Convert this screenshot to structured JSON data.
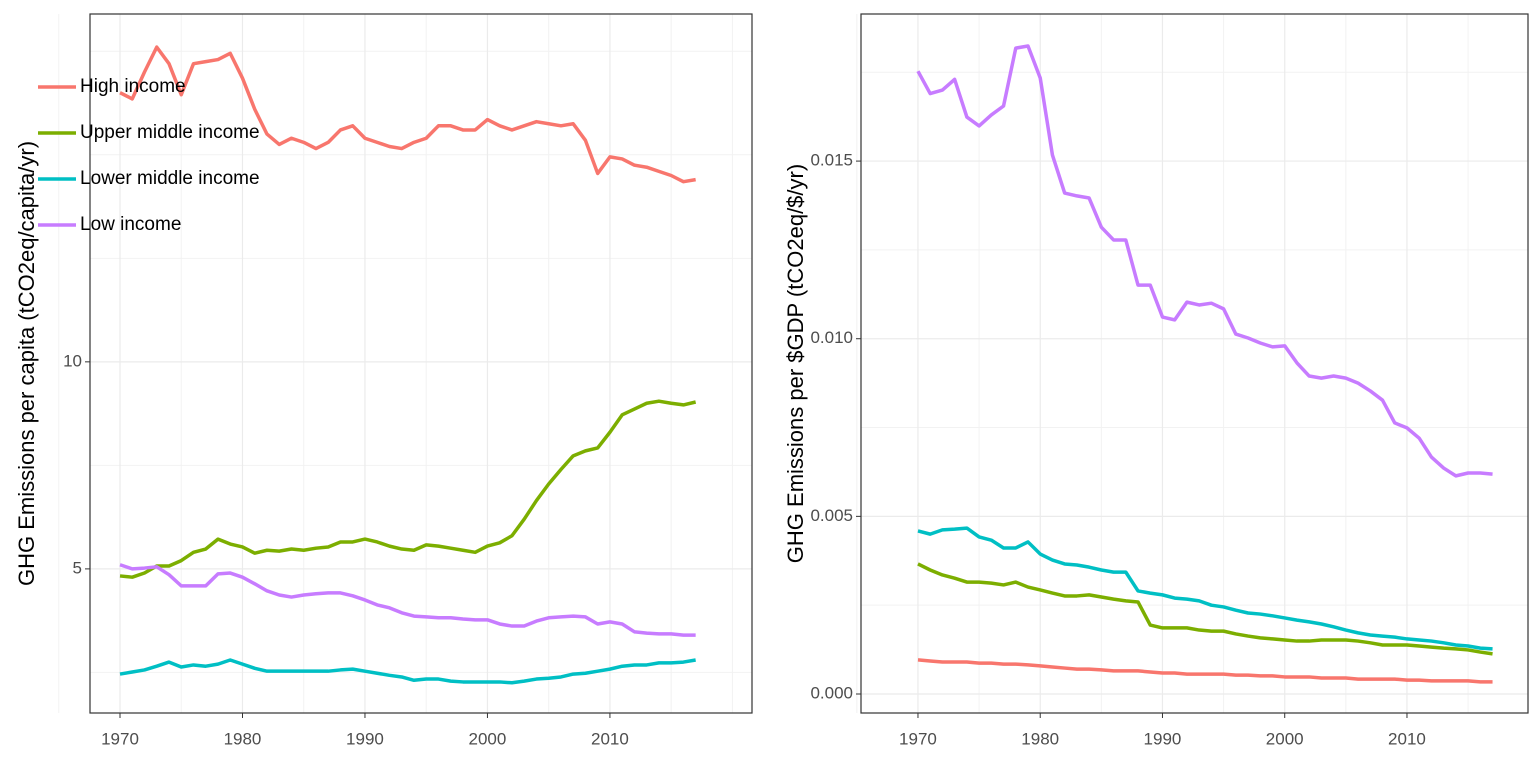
{
  "chart_data": [
    {
      "type": "line",
      "ylabel": "GHG Emissions per capita (tCO2eq/capita/yr)",
      "legend": "top-left",
      "grid": true,
      "xlim": [
        1967.55,
        2021.6
      ],
      "ylim": [
        1.52,
        18.4
      ],
      "xticks": [
        1970,
        1980,
        1990,
        2000,
        2010
      ],
      "yticks": [
        5,
        10
      ],
      "x": [
        1970,
        1971,
        1972,
        1973,
        1974,
        1975,
        1976,
        1977,
        1978,
        1979,
        1980,
        1981,
        1982,
        1983,
        1984,
        1985,
        1986,
        1987,
        1988,
        1989,
        1990,
        1991,
        1992,
        1993,
        1994,
        1995,
        1996,
        1997,
        1998,
        1999,
        2000,
        2001,
        2002,
        2003,
        2004,
        2005,
        2006,
        2007,
        2008,
        2009,
        2010,
        2011,
        2012,
        2013,
        2014,
        2015,
        2016,
        2017
      ],
      "series": [
        {
          "name": "High income",
          "color": "#F8766D",
          "values": [
            16.5,
            16.35,
            17.0,
            17.6,
            17.2,
            16.45,
            17.2,
            17.25,
            17.3,
            17.45,
            16.85,
            16.1,
            15.5,
            15.25,
            15.4,
            15.3,
            15.15,
            15.3,
            15.6,
            15.7,
            15.4,
            15.3,
            15.2,
            15.15,
            15.3,
            15.4,
            15.7,
            15.7,
            15.6,
            15.6,
            15.85,
            15.7,
            15.6,
            15.7,
            15.8,
            15.75,
            15.7,
            15.75,
            15.35,
            14.55,
            14.95,
            14.9,
            14.75,
            14.7,
            14.6,
            14.5,
            14.35,
            14.4
          ]
        },
        {
          "name": "Upper middle income",
          "color": "#7CAE00",
          "values": [
            4.83,
            4.8,
            4.9,
            5.07,
            5.07,
            5.2,
            5.4,
            5.48,
            5.72,
            5.6,
            5.53,
            5.38,
            5.45,
            5.43,
            5.48,
            5.45,
            5.5,
            5.53,
            5.65,
            5.65,
            5.72,
            5.65,
            5.55,
            5.48,
            5.45,
            5.58,
            5.55,
            5.5,
            5.45,
            5.4,
            5.55,
            5.63,
            5.8,
            6.2,
            6.65,
            7.05,
            7.4,
            7.73,
            7.85,
            7.92,
            8.3,
            8.72,
            8.86,
            9.0,
            9.05,
            9.0,
            8.96,
            9.03
          ]
        },
        {
          "name": "Lower middle income",
          "color": "#00BFC4",
          "values": [
            2.46,
            2.51,
            2.56,
            2.65,
            2.75,
            2.63,
            2.68,
            2.65,
            2.7,
            2.8,
            2.7,
            2.6,
            2.53,
            2.53,
            2.53,
            2.53,
            2.53,
            2.53,
            2.56,
            2.58,
            2.53,
            2.48,
            2.43,
            2.39,
            2.31,
            2.34,
            2.34,
            2.29,
            2.27,
            2.27,
            2.27,
            2.27,
            2.25,
            2.29,
            2.34,
            2.36,
            2.39,
            2.46,
            2.48,
            2.53,
            2.58,
            2.65,
            2.68,
            2.68,
            2.73,
            2.73,
            2.75,
            2.8
          ]
        },
        {
          "name": "Low income",
          "color": "#C77CFF",
          "values": [
            5.1,
            5.0,
            5.02,
            5.05,
            4.86,
            4.59,
            4.59,
            4.59,
            4.88,
            4.9,
            4.8,
            4.64,
            4.47,
            4.37,
            4.32,
            4.37,
            4.4,
            4.42,
            4.42,
            4.35,
            4.25,
            4.13,
            4.06,
            3.94,
            3.86,
            3.84,
            3.82,
            3.82,
            3.79,
            3.77,
            3.77,
            3.67,
            3.62,
            3.62,
            3.74,
            3.82,
            3.84,
            3.86,
            3.84,
            3.67,
            3.72,
            3.67,
            3.48,
            3.45,
            3.43,
            3.43,
            3.4,
            3.4
          ]
        }
      ]
    },
    {
      "type": "line",
      "ylabel": "GHG Emissions per $GDP (tCO2eq/$/yr)",
      "grid": true,
      "xlim": [
        1965.34,
        2019.9
      ],
      "ylim": [
        -0.000535,
        0.01914
      ],
      "xticks": [
        1970,
        1980,
        1990,
        2000,
        2010
      ],
      "yticks": [
        {
          "value": 0,
          "label": "0.000"
        },
        0.005,
        {
          "value": 0.01,
          "label": "0.010"
        },
        0.015
      ],
      "x": [
        1970,
        1971,
        1972,
        1973,
        1974,
        1975,
        1976,
        1977,
        1978,
        1979,
        1980,
        1981,
        1982,
        1983,
        1984,
        1985,
        1986,
        1987,
        1988,
        1989,
        1990,
        1991,
        1992,
        1993,
        1994,
        1995,
        1996,
        1997,
        1998,
        1999,
        2000,
        2001,
        2002,
        2003,
        2004,
        2005,
        2006,
        2007,
        2008,
        2009,
        2010,
        2011,
        2012,
        2013,
        2014,
        2015,
        2016,
        2017
      ],
      "series": [
        {
          "color": "#F8766D",
          "values": [
            0.00096,
            0.00093,
            0.0009,
            0.0009,
            0.0009,
            0.00087,
            0.00087,
            0.00084,
            0.00084,
            0.00082,
            0.00079,
            0.00076,
            0.00073,
            0.0007,
            0.0007,
            0.00068,
            0.00065,
            0.00065,
            0.00065,
            0.00062,
            0.00059,
            0.00059,
            0.00056,
            0.00056,
            0.00056,
            0.00056,
            0.00053,
            0.00053,
            0.00051,
            0.00051,
            0.00048,
            0.00048,
            0.00048,
            0.00045,
            0.00045,
            0.00045,
            0.00042,
            0.00042,
            0.00042,
            0.00042,
            0.00039,
            0.00039,
            0.00037,
            0.00037,
            0.00037,
            0.00037,
            0.00034,
            0.00034
          ]
        },
        {
          "color": "#7CAE00",
          "values": [
            0.00366,
            0.00349,
            0.00335,
            0.00326,
            0.00315,
            0.00315,
            0.00312,
            0.00307,
            0.00315,
            0.00301,
            0.00293,
            0.00284,
            0.00276,
            0.00276,
            0.00279,
            0.00273,
            0.00267,
            0.00262,
            0.00259,
            0.00194,
            0.00186,
            0.00186,
            0.00186,
            0.0018,
            0.00177,
            0.00177,
            0.00169,
            0.00163,
            0.00158,
            0.00155,
            0.00152,
            0.00149,
            0.00149,
            0.00152,
            0.00152,
            0.00152,
            0.00149,
            0.00144,
            0.00138,
            0.00138,
            0.00138,
            0.00135,
            0.00132,
            0.00129,
            0.00127,
            0.00124,
            0.00118,
            0.00113
          ]
        },
        {
          "color": "#00BFC4",
          "values": [
            0.00459,
            0.0045,
            0.00462,
            0.00464,
            0.00467,
            0.00442,
            0.00433,
            0.00411,
            0.00411,
            0.00428,
            0.00394,
            0.00377,
            0.00366,
            0.00363,
            0.00357,
            0.00349,
            0.00343,
            0.00343,
            0.0029,
            0.00284,
            0.00279,
            0.0027,
            0.00267,
            0.00262,
            0.0025,
            0.00245,
            0.00236,
            0.00228,
            0.00225,
            0.0022,
            0.00214,
            0.00208,
            0.00203,
            0.00197,
            0.00189,
            0.0018,
            0.00172,
            0.00166,
            0.00163,
            0.0016,
            0.00155,
            0.00152,
            0.00149,
            0.00144,
            0.00138,
            0.00135,
            0.00129,
            0.00127
          ]
        },
        {
          "color": "#C77CFF",
          "values": [
            0.01753,
            0.0169,
            0.017,
            0.0173,
            0.01624,
            0.01599,
            0.0163,
            0.01655,
            0.01818,
            0.01824,
            0.01734,
            0.01517,
            0.0141,
            0.01402,
            0.01396,
            0.01314,
            0.01278,
            0.01278,
            0.01151,
            0.01151,
            0.01061,
            0.01053,
            0.01103,
            0.01095,
            0.011,
            0.01084,
            0.01013,
            0.01002,
            0.00988,
            0.00977,
            0.0098,
            0.00932,
            0.00895,
            0.00889,
            0.00895,
            0.00889,
            0.00875,
            0.00853,
            0.00827,
            0.00763,
            0.00749,
            0.0072,
            0.00667,
            0.00636,
            0.00614,
            0.00622,
            0.00622,
            0.00619
          ]
        }
      ]
    }
  ]
}
